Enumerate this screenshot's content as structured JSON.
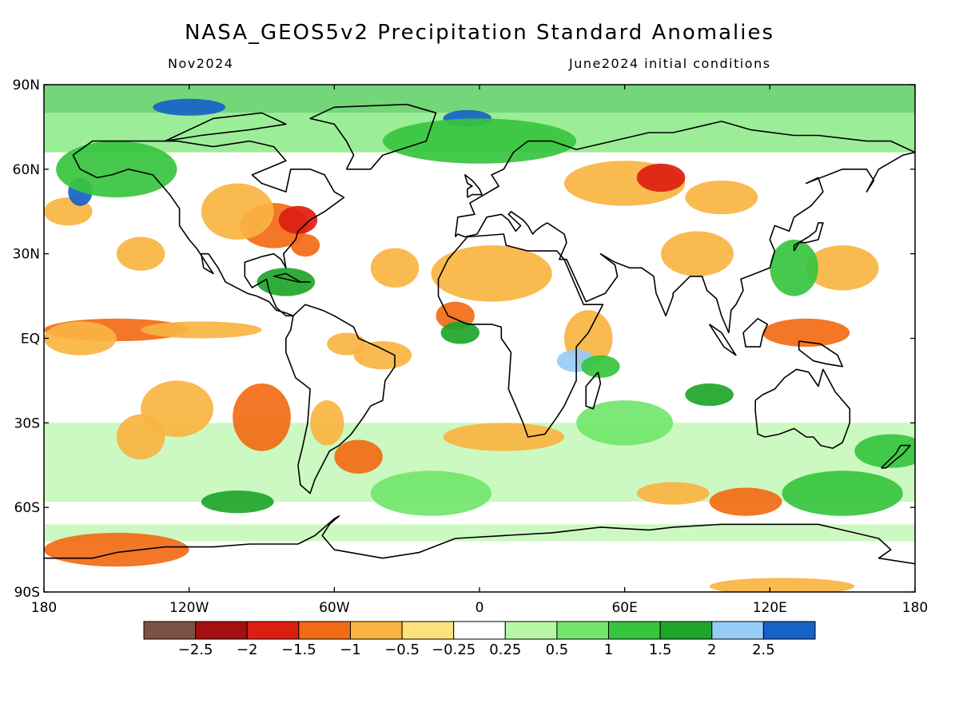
{
  "title": "NASA_GEOS5v2 Precipitation Standard Anomalies",
  "valid_month": "Nov2024",
  "init_conditions": "June2024 initial conditions",
  "lat_labels": [
    {
      "text": "90N",
      "lat": 90
    },
    {
      "text": "60N",
      "lat": 60
    },
    {
      "text": "30N",
      "lat": 30
    },
    {
      "text": "EQ",
      "lat": 0
    },
    {
      "text": "30S",
      "lat": -30
    },
    {
      "text": "60S",
      "lat": -60
    },
    {
      "text": "90S",
      "lat": -90
    }
  ],
  "lon_labels": [
    {
      "text": "180",
      "lon": -180
    },
    {
      "text": "120W",
      "lon": -120
    },
    {
      "text": "60W",
      "lon": -60
    },
    {
      "text": "0",
      "lon": 0
    },
    {
      "text": "60E",
      "lon": 60
    },
    {
      "text": "120E",
      "lon": 120
    },
    {
      "text": "180",
      "lon": 180
    }
  ],
  "colorbar": {
    "colors": [
      "#7b5146",
      "#a50f0f",
      "#dc1e10",
      "#f26b14",
      "#f9b441",
      "#fde27c",
      "#ffffff",
      "#b6f7a6",
      "#72e66b",
      "#37c43e",
      "#1ea52a",
      "#96cdf5",
      "#1762c9"
    ],
    "labels": [
      "−2.5",
      "−2",
      "−1.5",
      "−1",
      "−0.5",
      "−0.25",
      "0.25",
      "0.5",
      "1",
      "1.5",
      "2",
      "2.5"
    ]
  },
  "chart_data": {
    "type": "heatmap",
    "title": "NASA_GEOS5v2 Precipitation Standard Anomalies",
    "subtitle_left": "Nov2024",
    "subtitle_right": "June2024 initial conditions",
    "xlim": [
      -180,
      180
    ],
    "ylim": [
      -90,
      90
    ],
    "x_tick_labels": [
      "180",
      "120W",
      "60W",
      "0",
      "60E",
      "120E",
      "180"
    ],
    "y_tick_labels": [
      "90N",
      "60N",
      "30N",
      "EQ",
      "30S",
      "60S",
      "90S"
    ],
    "color_levels": [
      -2.5,
      -2,
      -1.5,
      -1,
      -0.5,
      -0.25,
      0.25,
      0.5,
      1,
      1.5,
      2,
      2.5
    ],
    "anomaly_features": [
      {
        "lon": -150,
        "lat": 3,
        "rx": 30,
        "ry": 4,
        "value": -1.2
      },
      {
        "lon": -115,
        "lat": 3,
        "rx": 25,
        "ry": 3,
        "value": -0.9
      },
      {
        "lon": -165,
        "lat": 0,
        "rx": 15,
        "ry": 6,
        "value": -0.8
      },
      {
        "lon": -85,
        "lat": 40,
        "rx": 14,
        "ry": 8,
        "value": -1.5
      },
      {
        "lon": -100,
        "lat": 45,
        "rx": 15,
        "ry": 10,
        "value": -1.0
      },
      {
        "lon": -75,
        "lat": 42,
        "rx": 8,
        "ry": 5,
        "value": -1.6
      },
      {
        "lon": -72,
        "lat": 33,
        "rx": 6,
        "ry": 4,
        "value": -1.2
      },
      {
        "lon": -140,
        "lat": 30,
        "rx": 10,
        "ry": 6,
        "value": -0.8
      },
      {
        "lon": -170,
        "lat": 45,
        "rx": 10,
        "ry": 5,
        "value": -0.7
      },
      {
        "lon": 5,
        "lat": 23,
        "rx": 25,
        "ry": 10,
        "value": -0.8
      },
      {
        "lon": -10,
        "lat": 8,
        "rx": 8,
        "ry": 5,
        "value": -1.2
      },
      {
        "lon": -35,
        "lat": 25,
        "rx": 10,
        "ry": 7,
        "value": -0.8
      },
      {
        "lon": 60,
        "lat": 55,
        "rx": 25,
        "ry": 8,
        "value": -1.0
      },
      {
        "lon": 75,
        "lat": 57,
        "rx": 10,
        "ry": 5,
        "value": -1.6
      },
      {
        "lon": 100,
        "lat": 50,
        "rx": 15,
        "ry": 6,
        "value": -0.7
      },
      {
        "lon": 90,
        "lat": 30,
        "rx": 15,
        "ry": 8,
        "value": -0.7
      },
      {
        "lon": 135,
        "lat": 2,
        "rx": 18,
        "ry": 5,
        "value": -1.2
      },
      {
        "lon": 150,
        "lat": 25,
        "rx": 15,
        "ry": 8,
        "value": -0.7
      },
      {
        "lon": -40,
        "lat": -6,
        "rx": 12,
        "ry": 5,
        "value": -0.8
      },
      {
        "lon": -55,
        "lat": -2,
        "rx": 8,
        "ry": 4,
        "value": -0.9
      },
      {
        "lon": -90,
        "lat": -28,
        "rx": 12,
        "ry": 12,
        "value": -1.5
      },
      {
        "lon": -125,
        "lat": -25,
        "rx": 15,
        "ry": 10,
        "value": -1.0
      },
      {
        "lon": -50,
        "lat": -42,
        "rx": 10,
        "ry": 6,
        "value": -1.5
      },
      {
        "lon": -63,
        "lat": -30,
        "rx": 7,
        "ry": 8,
        "value": -1.0
      },
      {
        "lon": -140,
        "lat": -35,
        "rx": 10,
        "ry": 8,
        "value": -0.7
      },
      {
        "lon": 110,
        "lat": -58,
        "rx": 15,
        "ry": 5,
        "value": -1.2
      },
      {
        "lon": 80,
        "lat": -55,
        "rx": 15,
        "ry": 4,
        "value": -0.8
      },
      {
        "lon": 10,
        "lat": -35,
        "rx": 25,
        "ry": 5,
        "value": -0.7
      },
      {
        "lon": -150,
        "lat": -75,
        "rx": 30,
        "ry": 6,
        "value": -1.3
      },
      {
        "lon": 125,
        "lat": -88,
        "rx": 30,
        "ry": 3,
        "value": -1.0
      },
      {
        "lon": 45,
        "lat": 0,
        "rx": 10,
        "ry": 10,
        "value": -0.6
      },
      {
        "lon": -120,
        "lat": 82,
        "rx": 15,
        "ry": 3,
        "value": 2.7
      },
      {
        "lon": -5,
        "lat": 78,
        "rx": 10,
        "ry": 3,
        "value": 2.6
      },
      {
        "lon": -80,
        "lat": 20,
        "rx": 12,
        "ry": 5,
        "value": 1.8
      },
      {
        "lon": -165,
        "lat": 52,
        "rx": 5,
        "ry": 5,
        "value": 2.5
      },
      {
        "lon": 40,
        "lat": -8,
        "rx": 8,
        "ry": 4,
        "value": 2.0
      },
      {
        "lon": -8,
        "lat": 2,
        "rx": 8,
        "ry": 4,
        "value": 1.5
      },
      {
        "lon": 95,
        "lat": -20,
        "rx": 10,
        "ry": 4,
        "value": 1.5
      },
      {
        "lon": 130,
        "lat": 25,
        "rx": 10,
        "ry": 10,
        "value": 1.3
      },
      {
        "lon": -100,
        "lat": -58,
        "rx": 15,
        "ry": 4,
        "value": 1.5
      },
      {
        "lon": 50,
        "lat": -10,
        "rx": 8,
        "ry": 4,
        "value": 1.3
      },
      {
        "lon": 170,
        "lat": -40,
        "rx": 15,
        "ry": 6,
        "value": 1.2
      },
      {
        "lon": 0,
        "lat": 70,
        "rx": 40,
        "ry": 8,
        "value": 1.0
      },
      {
        "lon": -150,
        "lat": 60,
        "rx": 25,
        "ry": 10,
        "value": 1.0
      },
      {
        "lon": 150,
        "lat": -55,
        "rx": 25,
        "ry": 8,
        "value": 1.0
      },
      {
        "lon": -20,
        "lat": -55,
        "rx": 25,
        "ry": 8,
        "value": 0.8
      },
      {
        "lon": 60,
        "lat": -30,
        "rx": 20,
        "ry": 8,
        "value": 0.8
      }
    ]
  }
}
